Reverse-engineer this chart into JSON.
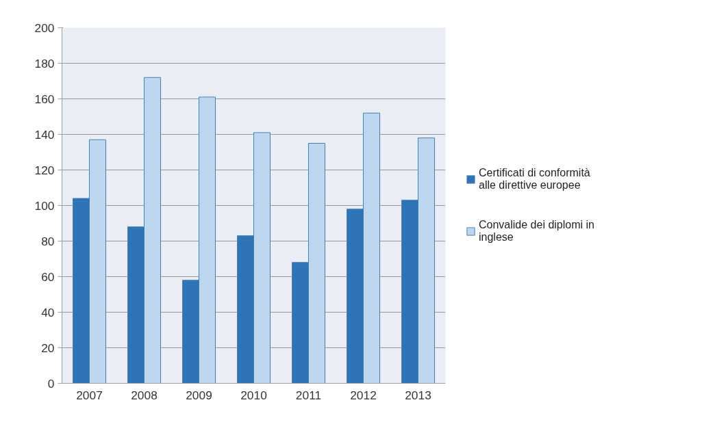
{
  "chart_data": {
    "type": "bar",
    "categories": [
      "2007",
      "2008",
      "2009",
      "2010",
      "2011",
      "2012",
      "2013"
    ],
    "series": [
      {
        "name": "Certificati di conformità alle direttive europee",
        "color": "#2e75b6",
        "values": [
          104,
          88,
          58,
          83,
          68,
          98,
          103
        ]
      },
      {
        "name": "Convalide dei diplomi in inglese",
        "color": "#bdd7ee",
        "values": [
          137,
          172,
          161,
          141,
          135,
          152,
          138
        ]
      }
    ],
    "ylim": [
      0,
      200
    ],
    "yticks": [
      0,
      20,
      40,
      60,
      80,
      100,
      120,
      140,
      160,
      180,
      200
    ],
    "grid": "y",
    "legend": "right"
  }
}
